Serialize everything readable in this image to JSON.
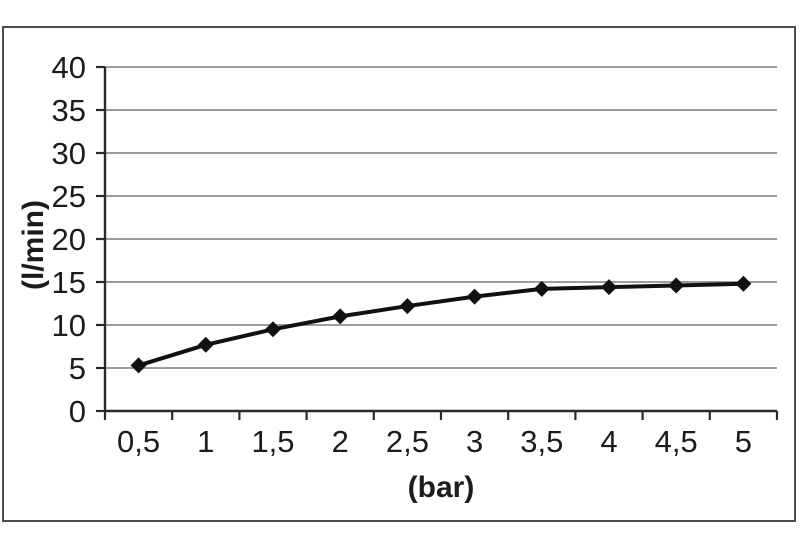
{
  "chart_data": {
    "type": "line",
    "categories": [
      "0,5",
      "1",
      "1,5",
      "2",
      "2,5",
      "3",
      "3,5",
      "4",
      "4,5",
      "5"
    ],
    "values": [
      5.3,
      7.7,
      9.5,
      11.0,
      12.2,
      13.3,
      14.2,
      14.4,
      14.6,
      14.8
    ],
    "title": "",
    "xlabel": "(bar)",
    "ylabel": "(l/min)",
    "ylim": [
      0,
      40
    ],
    "ytick_step": 5,
    "ytick_labels": [
      "0",
      "5",
      "10",
      "15",
      "20",
      "25",
      "30",
      "35",
      "40"
    ],
    "grid": true,
    "legend": "none",
    "marker": "diamond",
    "colors": {
      "series": "#111111",
      "marker": "#111111",
      "gridline": "#8f8f8f",
      "axis": "#2a2a2a",
      "tick_label": "#1c1c1c",
      "frame_border": "#4d4d4d",
      "background": "#ffffff"
    }
  }
}
